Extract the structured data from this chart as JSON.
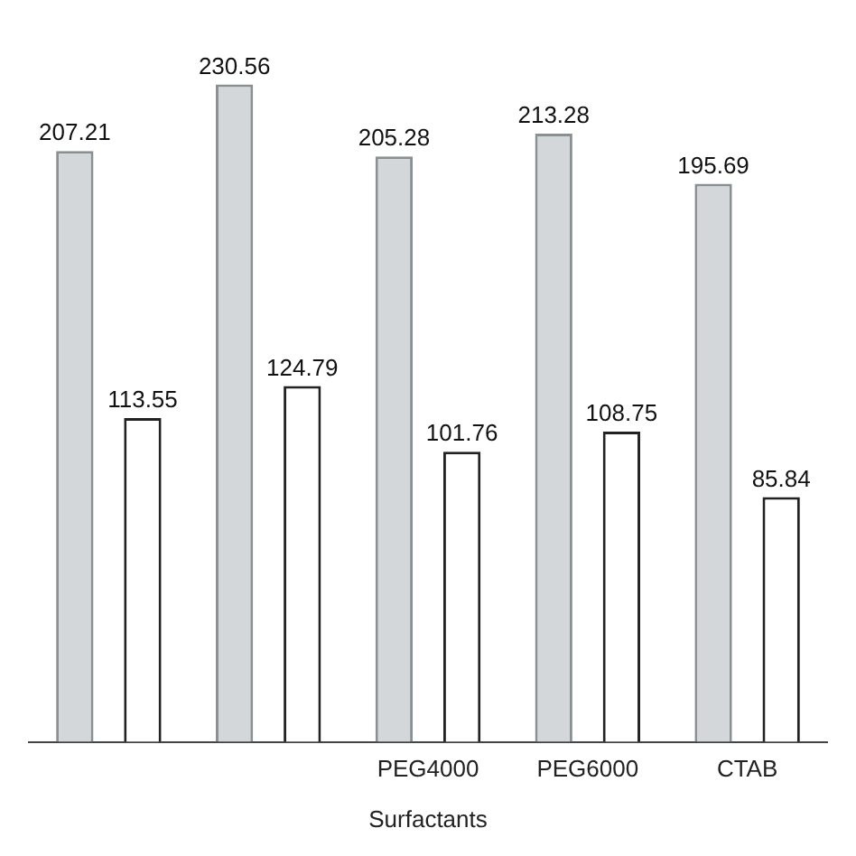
{
  "chart_data": {
    "type": "bar",
    "xlabel": "Surfactants",
    "categories": [
      null,
      null,
      "PEG4000",
      "PEG6000",
      "CTAB"
    ],
    "series": [
      {
        "color": "#d3d7d9",
        "values": [
          207.21,
          230.56,
          205.28,
          213.28,
          195.69
        ]
      },
      {
        "color": "#ffffff",
        "values": [
          113.55,
          124.79,
          101.76,
          108.75,
          85.84
        ]
      }
    ],
    "tick_labels": "x",
    "grid": false,
    "legend": false,
    "data_labels": true
  }
}
